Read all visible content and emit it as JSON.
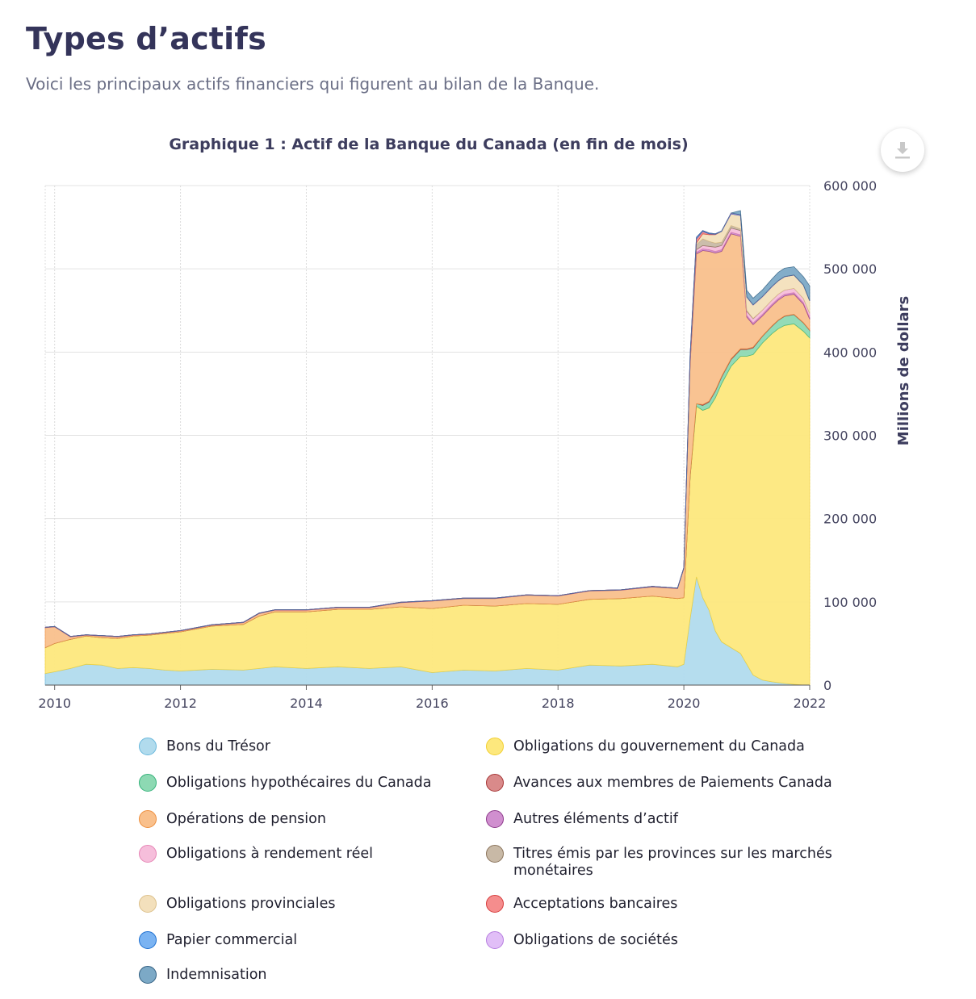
{
  "header": {
    "title": "Types d’actifs",
    "intro": "Voici les principaux actifs financiers qui figurent au bilan de la Banque."
  },
  "toolbar": {
    "download_icon": "download-icon"
  },
  "chart_data": {
    "type": "area",
    "stacked": true,
    "title": "Graphique 1 : Actif de la Banque du Canada (en fin de mois)",
    "xlabel": "",
    "ylabel": "Millions de dollars",
    "xlim": [
      2009.85,
      2022.0
    ],
    "ylim": [
      0,
      600000
    ],
    "x_ticks": [
      2010,
      2012,
      2014,
      2016,
      2018,
      2020,
      2022
    ],
    "y_ticks": [
      0,
      100000,
      200000,
      300000,
      400000,
      500000,
      600000
    ],
    "x_tick_labels": [
      "2010",
      "2012",
      "2014",
      "2016",
      "2018",
      "2020",
      "2022"
    ],
    "y_tick_labels": [
      "0",
      "100 000",
      "200 000",
      "300 000",
      "400 000",
      "500 000",
      "600 000"
    ],
    "x": [
      2009.85,
      2010.0,
      2010.25,
      2010.5,
      2010.75,
      2011.0,
      2011.25,
      2011.5,
      2011.75,
      2012.0,
      2012.5,
      2013.0,
      2013.25,
      2013.5,
      2014.0,
      2014.5,
      2015.0,
      2015.5,
      2016.0,
      2016.5,
      2017.0,
      2017.5,
      2018.0,
      2018.5,
      2019.0,
      2019.5,
      2019.9,
      2020.0,
      2020.1,
      2020.2,
      2020.3,
      2020.4,
      2020.5,
      2020.6,
      2020.75,
      2020.9,
      2021.0,
      2021.1,
      2021.25,
      2021.4,
      2021.5,
      2021.6,
      2021.75,
      2021.9,
      2022.0
    ],
    "series": [
      {
        "name": "Bons du Trésor",
        "color": "#b1dbed",
        "values": [
          14000,
          16000,
          20000,
          25000,
          24000,
          20000,
          21000,
          20000,
          18000,
          17000,
          19000,
          18000,
          20000,
          22000,
          20000,
          22000,
          20000,
          22000,
          15000,
          18000,
          17000,
          20000,
          18000,
          24000,
          23000,
          25000,
          22000,
          25000,
          80000,
          130000,
          105000,
          90000,
          65000,
          52000,
          45000,
          38000,
          25000,
          12000,
          6000,
          4000,
          3000,
          2000,
          1000,
          0,
          0
        ]
      },
      {
        "name": "Obligations du gouvernement du Canada",
        "color": "#fde87d",
        "values": [
          31000,
          34000,
          35000,
          34000,
          33000,
          36000,
          38000,
          40000,
          44000,
          47000,
          52000,
          55000,
          63000,
          66000,
          68000,
          69000,
          71000,
          72000,
          77000,
          78000,
          78000,
          78000,
          79000,
          79000,
          81000,
          82000,
          82000,
          80000,
          170000,
          205000,
          225000,
          243000,
          280000,
          310000,
          338000,
          357000,
          370000,
          385000,
          405000,
          418000,
          425000,
          430000,
          433000,
          425000,
          417000
        ]
      },
      {
        "name": "Obligations hypothécaires du Canada",
        "color": "#8dd9b3",
        "values": [
          0,
          0,
          0,
          0,
          0,
          0,
          0,
          0,
          0,
          0,
          0,
          0,
          0,
          0,
          0,
          0,
          0,
          0,
          0,
          0,
          0,
          0,
          0,
          0,
          0,
          0,
          0,
          0,
          1000,
          3000,
          6000,
          7000,
          8000,
          8000,
          8000,
          8000,
          8000,
          8000,
          8000,
          9000,
          10000,
          11000,
          11000,
          10000,
          9000
        ]
      },
      {
        "name": "Avances aux membres de Paiements Canada",
        "color": "#d98a8a",
        "values": [
          0,
          0,
          0,
          0,
          0,
          0,
          0,
          0,
          0,
          0,
          0,
          0,
          0,
          0,
          0,
          0,
          0,
          0,
          0,
          0,
          0,
          0,
          0,
          0,
          0,
          0,
          0,
          0,
          0,
          0,
          1000,
          1000,
          1000,
          1000,
          1000,
          1000,
          1000,
          1000,
          500,
          500,
          500,
          500,
          500,
          500,
          500
        ]
      },
      {
        "name": "Opérations de pension",
        "color": "#f9c08c",
        "values": [
          24000,
          20000,
          3000,
          1000,
          2000,
          2000,
          1000,
          1000,
          1000,
          1000,
          1000,
          2000,
          3000,
          2000,
          2000,
          2000,
          2000,
          5000,
          9000,
          8000,
          9000,
          10000,
          10000,
          10000,
          10000,
          11000,
          12000,
          35000,
          135000,
          180000,
          185000,
          180000,
          165000,
          150000,
          150000,
          135000,
          38000,
          27000,
          24000,
          24000,
          24000,
          24000,
          24000,
          22000,
          13000
        ]
      },
      {
        "name": "Autres éléments d’actif",
        "color": "#d08fcf",
        "values": [
          500,
          500,
          500,
          500,
          500,
          500,
          500,
          500,
          500,
          500,
          500,
          500,
          500,
          500,
          500,
          500,
          500,
          500,
          500,
          500,
          500,
          500,
          500,
          500,
          500,
          500,
          500,
          1000,
          2000,
          2000,
          2000,
          2000,
          2000,
          2000,
          2000,
          2000,
          2000,
          2000,
          2000,
          2000,
          2000,
          2000,
          2000,
          2000,
          2000
        ]
      },
      {
        "name": "Obligations à rendement réel",
        "color": "#f6bedb",
        "values": [
          0,
          0,
          0,
          0,
          0,
          0,
          0,
          0,
          0,
          0,
          0,
          0,
          0,
          0,
          0,
          0,
          0,
          0,
          0,
          0,
          0,
          0,
          0,
          0,
          0,
          0,
          0,
          0,
          1000,
          3000,
          4000,
          4000,
          5000,
          5000,
          5000,
          5000,
          5000,
          5000,
          5000,
          5000,
          5000,
          5000,
          5000,
          5000,
          5000
        ]
      },
      {
        "name": "Titres émis par les provinces sur les marchés monétaires",
        "color": "#c8b9a6",
        "values": [
          0,
          0,
          0,
          0,
          0,
          0,
          0,
          0,
          0,
          0,
          0,
          0,
          0,
          0,
          0,
          0,
          0,
          0,
          0,
          0,
          0,
          0,
          0,
          0,
          0,
          0,
          0,
          0,
          2000,
          6000,
          8000,
          6000,
          5000,
          4000,
          3000,
          2000,
          1000,
          500,
          0,
          0,
          0,
          0,
          0,
          0,
          0
        ]
      },
      {
        "name": "Obligations provinciales",
        "color": "#f3e0bc",
        "values": [
          0,
          0,
          0,
          0,
          0,
          0,
          0,
          0,
          0,
          0,
          0,
          0,
          0,
          0,
          0,
          0,
          0,
          0,
          0,
          0,
          0,
          0,
          0,
          0,
          0,
          0,
          0,
          0,
          0,
          2000,
          6000,
          8000,
          10000,
          13000,
          14000,
          16000,
          16000,
          16000,
          16000,
          16000,
          16000,
          16000,
          16000,
          16000,
          15000
        ]
      },
      {
        "name": "Acceptations bancaires",
        "color": "#f58d8d",
        "values": [
          0,
          0,
          0,
          0,
          0,
          0,
          0,
          0,
          0,
          0,
          0,
          0,
          0,
          0,
          0,
          0,
          0,
          0,
          0,
          0,
          0,
          0,
          0,
          0,
          0,
          0,
          0,
          0,
          5000,
          5000,
          3000,
          1000,
          500,
          0,
          0,
          0,
          0,
          0,
          0,
          0,
          0,
          0,
          0,
          0,
          0
        ]
      },
      {
        "name": "Papier commercial",
        "color": "#7ab3f2",
        "values": [
          0,
          0,
          0,
          0,
          0,
          0,
          0,
          0,
          0,
          0,
          0,
          0,
          0,
          0,
          0,
          0,
          0,
          0,
          0,
          0,
          0,
          0,
          0,
          0,
          0,
          0,
          0,
          0,
          1000,
          2000,
          1000,
          1000,
          500,
          500,
          500,
          500,
          0,
          0,
          0,
          0,
          0,
          0,
          0,
          0,
          0
        ]
      },
      {
        "name": "Obligations de sociétés",
        "color": "#e1bef7",
        "values": [
          0,
          0,
          0,
          0,
          0,
          0,
          0,
          0,
          0,
          0,
          0,
          0,
          0,
          0,
          0,
          0,
          0,
          0,
          0,
          0,
          0,
          0,
          0,
          0,
          0,
          0,
          0,
          0,
          0,
          0,
          0,
          0,
          0,
          0,
          500,
          500,
          300,
          300,
          300,
          300,
          200,
          200,
          100,
          100,
          100
        ]
      },
      {
        "name": "Indemnisation",
        "color": "#7ca9c6",
        "values": [
          0,
          0,
          0,
          0,
          0,
          0,
          0,
          0,
          0,
          0,
          0,
          0,
          0,
          0,
          0,
          0,
          0,
          0,
          0,
          0,
          0,
          0,
          0,
          0,
          0,
          0,
          0,
          0,
          0,
          0,
          0,
          0,
          0,
          0,
          0,
          5000,
          8000,
          8000,
          8000,
          9000,
          10000,
          10000,
          10000,
          10000,
          18000
        ]
      }
    ]
  },
  "legend": {
    "items": [
      {
        "label": "Bons du Trésor",
        "fill": "#b1dbed",
        "stroke": "#67b7dc"
      },
      {
        "label": "Obligations du gouvernement du Canada",
        "fill": "#fde87d",
        "stroke": "#f2cf2f"
      },
      {
        "label": "Obligations hypothécaires du Canada",
        "fill": "#8dd9b3",
        "stroke": "#34b27a"
      },
      {
        "label": "Avances aux membres de Paiements Canada",
        "fill": "#d98a8a",
        "stroke": "#a63535"
      },
      {
        "label": "Opérations de pension",
        "fill": "#f9c08c",
        "stroke": "#ee8f3e"
      },
      {
        "label": "Autres éléments d’actif",
        "fill": "#d08fcf",
        "stroke": "#8e3b8c"
      },
      {
        "label": "Obligations à rendement réel",
        "fill": "#f6bedb",
        "stroke": "#e685b5"
      },
      {
        "label": "Titres émis par les provinces sur les marchés monétaires",
        "fill": "#c8b9a6",
        "stroke": "#8a735a"
      },
      {
        "label": "Obligations provinciales",
        "fill": "#f3e0bc",
        "stroke": "#dcc08a"
      },
      {
        "label": "Acceptations bancaires",
        "fill": "#f58d8d",
        "stroke": "#d63b3b"
      },
      {
        "label": "Papier commercial",
        "fill": "#7ab3f2",
        "stroke": "#1d6fd1"
      },
      {
        "label": "Obligations de sociétés",
        "fill": "#e1bef7",
        "stroke": "#b77ee0"
      },
      {
        "label": "Indemnisation",
        "fill": "#7ca9c6",
        "stroke": "#305e80"
      }
    ]
  }
}
